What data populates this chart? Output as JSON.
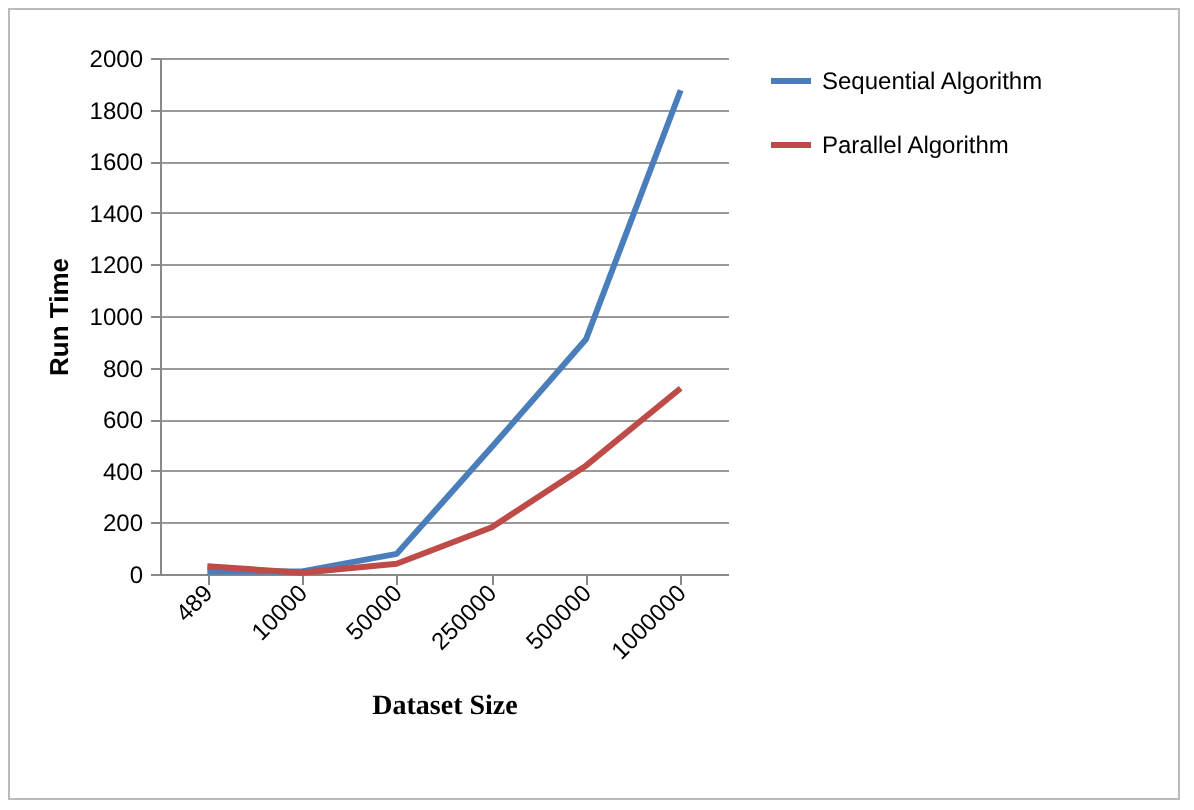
{
  "chart_data": {
    "type": "line",
    "xlabel": "Dataset Size",
    "ylabel": "Run Time",
    "categories": [
      "489",
      "10000",
      "50000",
      "250000",
      "500000",
      "1000000"
    ],
    "series": [
      {
        "name": "Sequential Algorithm",
        "color": "#4a7ebb",
        "values": [
          10,
          10,
          78,
          490,
          910,
          1875
        ]
      },
      {
        "name": "Parallel Algorithm",
        "color": "#be4b48",
        "values": [
          30,
          5,
          40,
          180,
          420,
          720
        ]
      }
    ],
    "ylim": [
      0,
      2000
    ],
    "yticks": [
      0,
      200,
      400,
      600,
      800,
      1000,
      1200,
      1400,
      1600,
      1800,
      2000
    ],
    "grid": "y",
    "legend": "right",
    "marker": "none",
    "line_style": "solid"
  }
}
